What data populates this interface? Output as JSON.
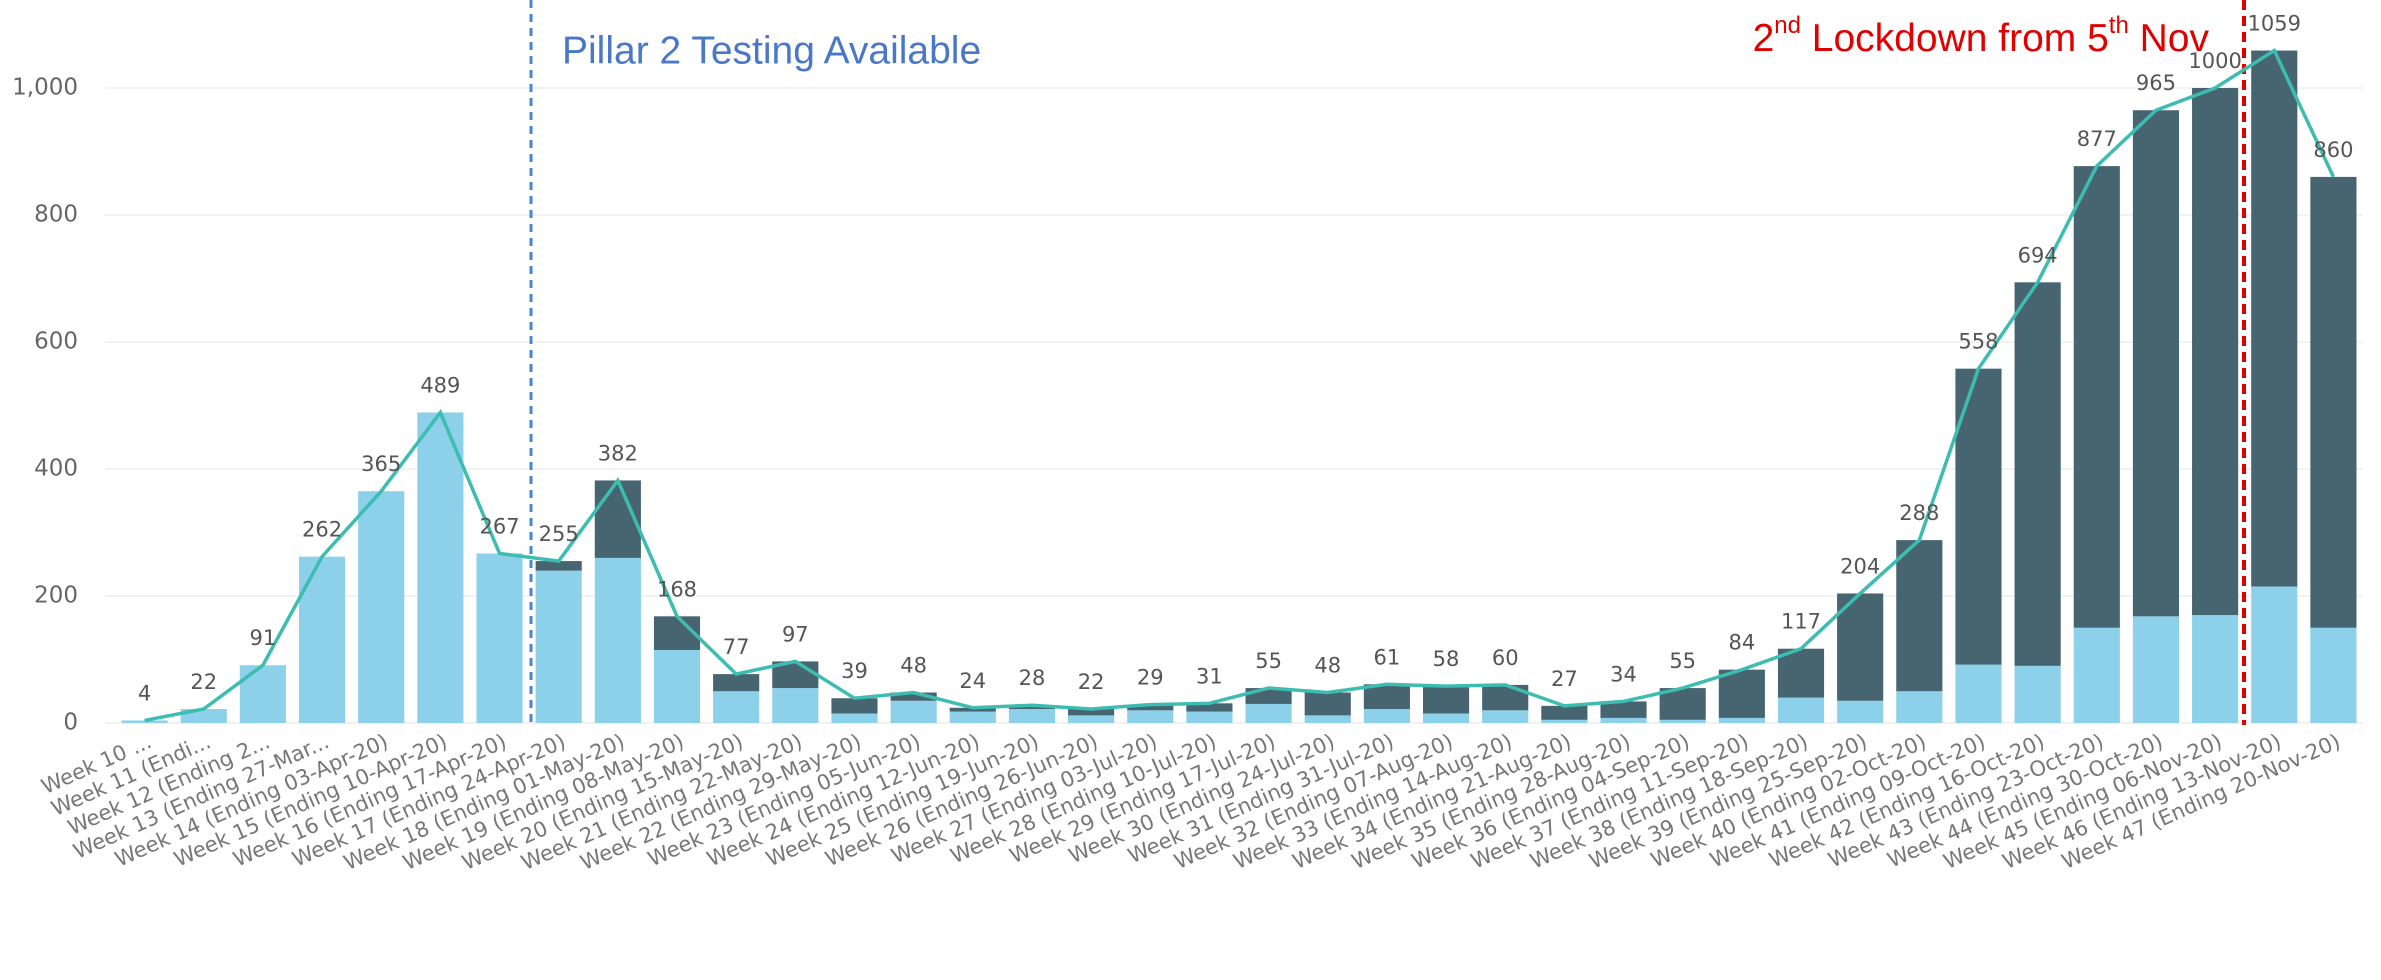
{
  "chart_data": {
    "type": "bar",
    "stacked": true,
    "categories": [
      "Week 10 ...",
      "Week 11 (Endi...",
      "Week 12 (Ending 2...",
      "Week 13 (Ending 27-Mar...",
      "Week 14 (Ending 03-Apr-20)",
      "Week 15 (Ending 10-Apr-20)",
      "Week 16 (Ending 17-Apr-20)",
      "Week 17 (Ending 24-Apr-20)",
      "Week 18 (Ending 01-May-20)",
      "Week 19 (Ending 08-May-20)",
      "Week 20 (Ending 15-May-20)",
      "Week 21 (Ending 22-May-20)",
      "Week 22 (Ending 29-May-20)",
      "Week 23 (Ending 05-Jun-20)",
      "Week 24 (Ending 12-Jun-20)",
      "Week 25 (Ending 19-Jun-20)",
      "Week 26 (Ending 26-Jun-20)",
      "Week 27 (Ending 03-Jul-20)",
      "Week 28 (Ending 10-Jul-20)",
      "Week 29 (Ending 17-Jul-20)",
      "Week 30 (Ending 24-Jul-20)",
      "Week 31 (Ending 31-Jul-20)",
      "Week 32 (Ending 07-Aug-20)",
      "Week 33 (Ending 14-Aug-20)",
      "Week 34 (Ending 21-Aug-20)",
      "Week 35 (Ending 28-Aug-20)",
      "Week 36 (Ending 04-Sep-20)",
      "Week 37 (Ending 11-Sep-20)",
      "Week 38 (Ending 18-Sep-20)",
      "Week 39 (Ending 25-Sep-20)",
      "Week 40 (Ending 02-Oct-20)",
      "Week 41 (Ending 09-Oct-20)",
      "Week 42 (Ending 16-Oct-20)",
      "Week 43 (Ending 23-Oct-20)",
      "Week 44 (Ending 30-Oct-20)",
      "Week 45 (Ending 06-Nov-20)",
      "Week 46 (Ending 13-Nov-20)",
      "Week 47 (Ending 20-Nov-20)"
    ],
    "series": [
      {
        "color": "#8dd0ea",
        "values": [
          4,
          22,
          91,
          262,
          365,
          489,
          267,
          240,
          260,
          115,
          50,
          55,
          15,
          35,
          18,
          22,
          12,
          20,
          18,
          30,
          12,
          22,
          15,
          20,
          5,
          8,
          5,
          8,
          40,
          35,
          50,
          92,
          90,
          150,
          168,
          170,
          215,
          150
        ]
      },
      {
        "color": "#466570",
        "values": [
          0,
          0,
          0,
          0,
          0,
          0,
          0,
          15,
          122,
          53,
          27,
          42,
          24,
          13,
          6,
          6,
          10,
          9,
          13,
          25,
          36,
          39,
          43,
          40,
          22,
          26,
          50,
          76,
          77,
          169,
          238,
          466,
          604,
          727,
          797,
          830,
          844,
          710
        ]
      }
    ],
    "line": {
      "color": "#3dbdb1",
      "values": [
        4,
        22,
        91,
        262,
        365,
        489,
        267,
        255,
        382,
        168,
        77,
        97,
        39,
        48,
        24,
        28,
        22,
        29,
        31,
        55,
        48,
        61,
        58,
        60,
        27,
        34,
        55,
        84,
        117,
        204,
        288,
        558,
        694,
        877,
        965,
        1000,
        1059,
        860
      ]
    },
    "ylim": [
      0,
      1100
    ],
    "yticks": [
      0,
      200,
      400,
      600,
      800,
      {
        "value": 1000,
        "label": "1,000"
      }
    ],
    "grid": true,
    "annotations": {
      "pillar": "Pillar 2 Testing Available",
      "lockdown": [
        "2",
        "nd",
        " Lockdown from 5",
        "th",
        " Nov"
      ]
    }
  }
}
